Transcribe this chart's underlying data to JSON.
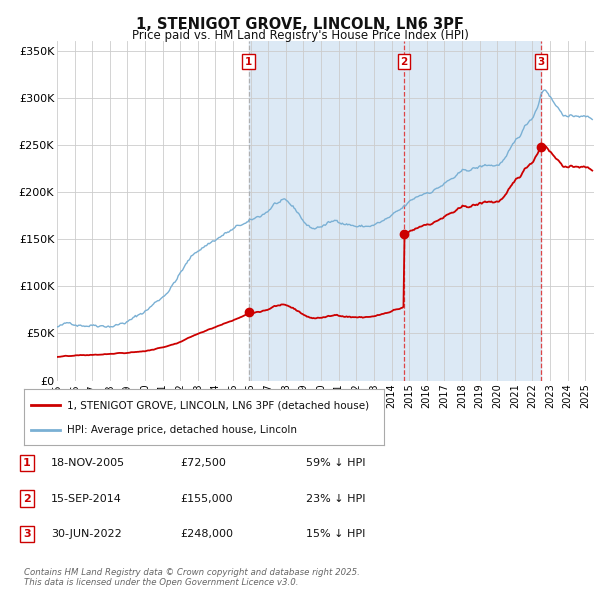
{
  "title": "1, STENIGOT GROVE, LINCOLN, LN6 3PF",
  "subtitle": "Price paid vs. HM Land Registry's House Price Index (HPI)",
  "background_color": "#ffffff",
  "plot_bg_color": "#ffffff",
  "fill_bg_color": "#dce9f5",
  "grid_color": "#cccccc",
  "xlim_start": 1995.0,
  "xlim_end": 2025.5,
  "ylim_min": 0,
  "ylim_max": 360000,
  "yticks": [
    0,
    50000,
    100000,
    150000,
    200000,
    250000,
    300000,
    350000
  ],
  "ytick_labels": [
    "£0",
    "£50K",
    "£100K",
    "£150K",
    "£200K",
    "£250K",
    "£300K",
    "£350K"
  ],
  "sale_dates": [
    2005.88,
    2014.71,
    2022.5
  ],
  "sale_prices": [
    72500,
    155000,
    248000
  ],
  "sale_labels": [
    "1",
    "2",
    "3"
  ],
  "sale_date_strs": [
    "18-NOV-2005",
    "15-SEP-2014",
    "30-JUN-2022"
  ],
  "sale_price_strs": [
    "£72,500",
    "£155,000",
    "£248,000"
  ],
  "sale_hpi_strs": [
    "59% ↓ HPI",
    "23% ↓ HPI",
    "15% ↓ HPI"
  ],
  "hpi_line_color": "#7ab0d4",
  "price_line_color": "#cc0000",
  "dashed_line_color_1": "#aaaaaa",
  "dashed_line_color_23": "#dd3333",
  "marker_color": "#cc0000",
  "legend_label_price": "1, STENIGOT GROVE, LINCOLN, LN6 3PF (detached house)",
  "legend_label_hpi": "HPI: Average price, detached house, Lincoln",
  "footer_text": "Contains HM Land Registry data © Crown copyright and database right 2025.\nThis data is licensed under the Open Government Licence v3.0.",
  "xticks": [
    1995,
    1996,
    1997,
    1998,
    1999,
    2000,
    2001,
    2002,
    2003,
    2004,
    2005,
    2006,
    2007,
    2008,
    2009,
    2010,
    2011,
    2012,
    2013,
    2014,
    2015,
    2016,
    2017,
    2018,
    2019,
    2020,
    2021,
    2022,
    2023,
    2024,
    2025
  ]
}
